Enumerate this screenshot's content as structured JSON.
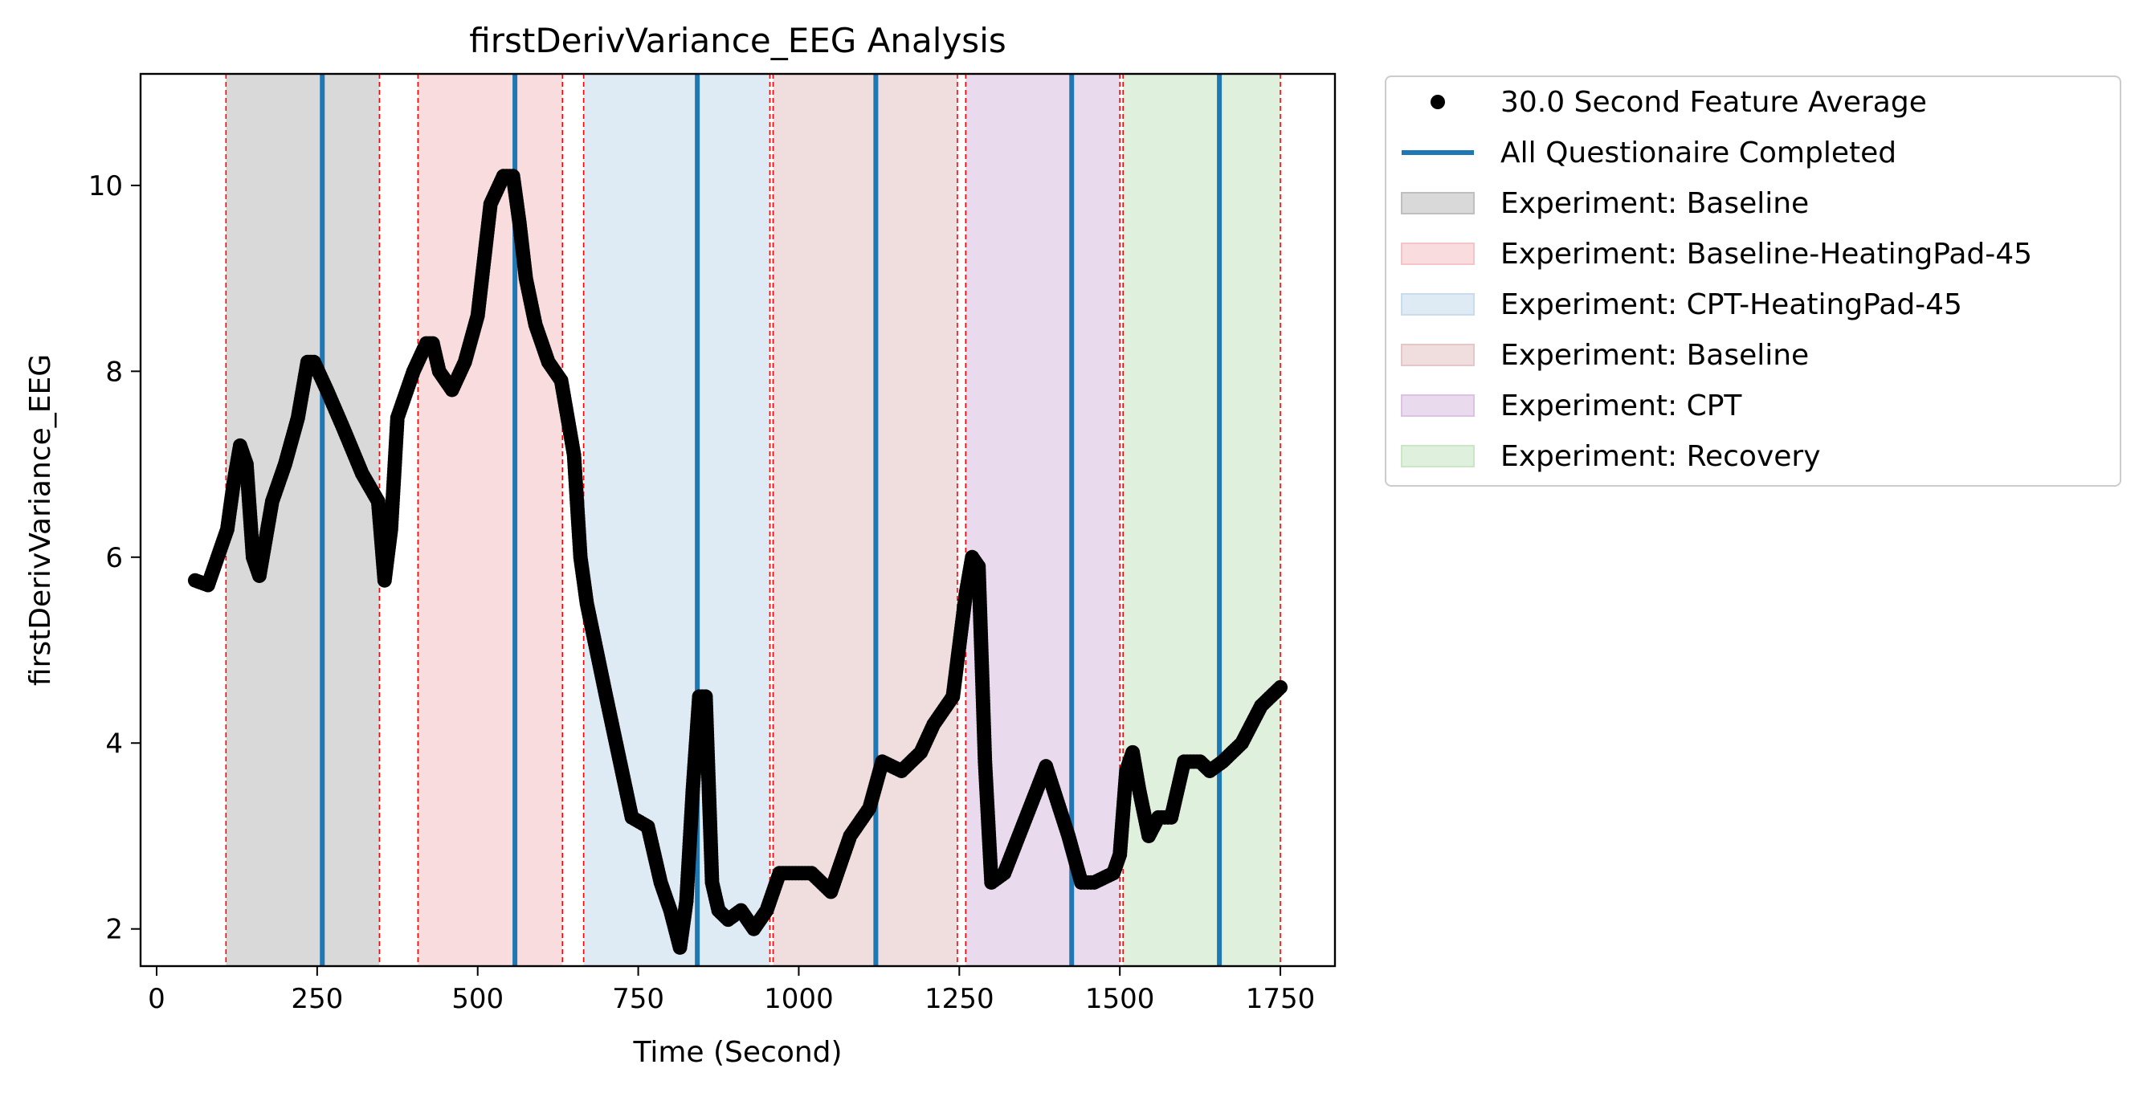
{
  "chart_data": {
    "type": "scatter",
    "title": "firstDerivVariance_EEG Analysis",
    "xlabel": "Time (Second)",
    "ylabel": "firstDerivVariance_EEG",
    "xlim": [
      -25,
      1835
    ],
    "ylim": [
      1.6,
      11.2
    ],
    "xticks": [
      0,
      250,
      500,
      750,
      1000,
      1250,
      1500,
      1750
    ],
    "xtick_labels": [
      "0",
      "250",
      "500",
      "750",
      "1000",
      "1250",
      "1500",
      "1750"
    ],
    "yticks": [
      2,
      4,
      6,
      8,
      10
    ],
    "ytick_labels": [
      "2",
      "4",
      "6",
      "8",
      "10"
    ],
    "grid": false,
    "legend_position": "outside-right",
    "feature_series": {
      "name": "30.0 Second Feature Average",
      "color": "#000000",
      "x": [
        60,
        80,
        95,
        110,
        120,
        130,
        140,
        150,
        160,
        170,
        180,
        200,
        220,
        235,
        245,
        255,
        265,
        290,
        320,
        345,
        355,
        365,
        375,
        400,
        420,
        430,
        440,
        460,
        480,
        500,
        520,
        540,
        555,
        565,
        575,
        590,
        610,
        630,
        650,
        660,
        670,
        700,
        740,
        765,
        785,
        800,
        815,
        825,
        835,
        845,
        855,
        865,
        875,
        890,
        910,
        930,
        950,
        970,
        1000,
        1020,
        1050,
        1080,
        1110,
        1130,
        1160,
        1190,
        1210,
        1240,
        1260,
        1270,
        1280,
        1290,
        1300,
        1320,
        1385,
        1420,
        1440,
        1460,
        1490,
        1500,
        1510,
        1520,
        1530,
        1545,
        1560,
        1580,
        1600,
        1625,
        1640,
        1660,
        1690,
        1720,
        1750
      ],
      "y": [
        5.75,
        5.7,
        6.0,
        6.3,
        6.8,
        7.2,
        7.0,
        6.0,
        5.8,
        6.2,
        6.6,
        7.0,
        7.5,
        8.1,
        8.1,
        7.95,
        7.8,
        7.4,
        6.9,
        6.6,
        5.75,
        6.3,
        7.5,
        8.0,
        8.3,
        8.3,
        8.0,
        7.8,
        8.1,
        8.6,
        9.8,
        10.1,
        10.1,
        9.6,
        9.0,
        8.5,
        8.1,
        7.9,
        7.1,
        6.0,
        5.5,
        4.5,
        3.2,
        3.1,
        2.5,
        2.2,
        1.8,
        2.3,
        3.5,
        4.5,
        4.5,
        2.5,
        2.2,
        2.1,
        2.2,
        2.0,
        2.2,
        2.6,
        2.6,
        2.6,
        2.4,
        3.0,
        3.3,
        3.8,
        3.7,
        3.9,
        4.2,
        4.5,
        5.6,
        6.0,
        5.9,
        3.8,
        2.5,
        2.6,
        3.75,
        3.0,
        2.5,
        2.5,
        2.6,
        2.8,
        3.7,
        3.9,
        3.5,
        3.0,
        3.2,
        3.2,
        3.8,
        3.8,
        3.7,
        3.8,
        4.0,
        4.4,
        4.6
      ]
    },
    "questionnaire_lines": {
      "name": "All Questionaire Completed",
      "color": "#1f77b4",
      "x": [
        258,
        558,
        842,
        1120,
        1425,
        1655
      ]
    },
    "experiment_segments": [
      {
        "name": "Experiment: Baseline",
        "start": 108,
        "end": 347,
        "color": "#bfbfbf"
      },
      {
        "name": "Experiment: Baseline-HeatingPad-45",
        "start": 407,
        "end": 632,
        "color": "#f4c4c8"
      },
      {
        "name": "Experiment: CPT-HeatingPad-45",
        "start": 665,
        "end": 955,
        "color": "#c8dced"
      },
      {
        "name": "Experiment: Baseline",
        "start": 960,
        "end": 1247,
        "color": "#e6c6c6"
      },
      {
        "name": "Experiment: CPT",
        "start": 1260,
        "end": 1500,
        "color": "#dcc2e3"
      },
      {
        "name": "Experiment: Recovery",
        "start": 1505,
        "end": 1750,
        "color": "#c9e6c6"
      }
    ],
    "segment_boundaries": [
      108,
      347,
      407,
      632,
      665,
      955,
      960,
      1247,
      1260,
      1500,
      1505,
      1750
    ],
    "boundary_color": "#ff0000",
    "legend": [
      {
        "label": "30.0 Second Feature Average",
        "kind": "marker",
        "color": "#000000"
      },
      {
        "label": "All Questionaire Completed",
        "kind": "line",
        "color": "#1f77b4"
      },
      {
        "label": "Experiment: Baseline",
        "kind": "patch",
        "color": "#bfbfbf"
      },
      {
        "label": "Experiment: Baseline-HeatingPad-45",
        "kind": "patch",
        "color": "#f4c4c8"
      },
      {
        "label": "Experiment: CPT-HeatingPad-45",
        "kind": "patch",
        "color": "#c8dced"
      },
      {
        "label": "Experiment: Baseline",
        "kind": "patch",
        "color": "#e6c6c6"
      },
      {
        "label": "Experiment: CPT",
        "kind": "patch",
        "color": "#dcc2e3"
      },
      {
        "label": "Experiment: Recovery",
        "kind": "patch",
        "color": "#c9e6c6"
      }
    ]
  }
}
